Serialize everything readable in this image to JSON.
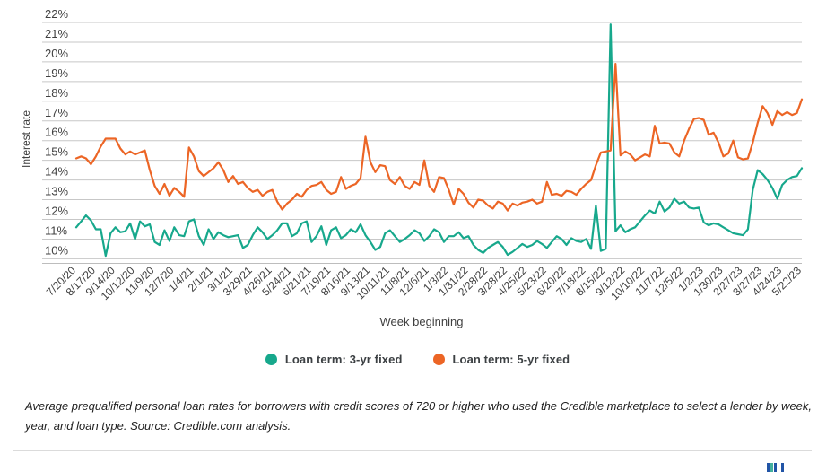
{
  "legend": {
    "series1_label": "Loan term: 3-yr fixed",
    "series2_label": "Loan term: 5-yr fixed"
  },
  "footnote": "Average prequalified personal loan rates for borrowers with credit scores of 720 or higher who used the Credible marketplace to select a lender by week, year, and loan type. Source: Credible.com analysis.",
  "colors": {
    "series_3yr": "#17A88C",
    "series_5yr": "#EC6525",
    "gridline": "#c7c7c7",
    "baseline": "#bdbdbd",
    "tick_text": "#404040",
    "logo_blue": "#2154a6",
    "logo_teal": "#44b09e"
  },
  "chart_data": {
    "type": "line",
    "title": "",
    "xlabel": "Week beginning",
    "ylabel": "Interest rate",
    "ylim": [
      10,
      22
    ],
    "grid": "horizontal",
    "legend_position": "bottom",
    "y_ticks": [
      "22%",
      "21%",
      "20%",
      "19%",
      "18%",
      "17%",
      "16%",
      "15%",
      "14%",
      "13%",
      "12%",
      "11%",
      "10%"
    ],
    "weeks_per_tick": 4,
    "x_tick_labels": [
      "7/20/20",
      "8/17/20",
      "9/14/20",
      "10/12/20",
      "11/9/20",
      "12/7/20",
      "1/4/21",
      "2/1/21",
      "3/1/21",
      "3/29/21",
      "4/26/21",
      "5/24/21",
      "6/21/21",
      "7/19/21",
      "8/16/21",
      "9/13/21",
      "10/11/21",
      "11/8/21",
      "12/6/21",
      "1/3/22",
      "1/31/22",
      "2/28/22",
      "3/28/22",
      "4/25/22",
      "5/23/22",
      "6/20/22",
      "7/18/22",
      "8/15/22",
      "9/12/22",
      "10/10/22",
      "11/7/22",
      "12/5/22",
      "1/2/23",
      "1/30/23",
      "2/27/23",
      "3/27/23",
      "4/24/23",
      "5/22/23"
    ],
    "series": [
      {
        "name": "Loan term: 3-yr fixed",
        "color": "#17A88C",
        "values": [
          11.6,
          11.9,
          12.2,
          11.95,
          11.5,
          11.5,
          10.15,
          11.3,
          11.6,
          11.35,
          11.4,
          11.8,
          11.0,
          11.9,
          11.65,
          11.75,
          10.85,
          10.7,
          11.45,
          10.9,
          11.6,
          11.2,
          11.15,
          11.9,
          12.0,
          11.15,
          10.7,
          11.5,
          11.0,
          11.35,
          11.2,
          11.1,
          11.15,
          11.2,
          10.55,
          10.7,
          11.2,
          11.6,
          11.35,
          11.0,
          11.2,
          11.45,
          11.8,
          11.8,
          11.15,
          11.3,
          11.8,
          11.9,
          10.85,
          11.15,
          11.65,
          10.7,
          11.45,
          11.6,
          11.05,
          11.2,
          11.5,
          11.35,
          11.75,
          11.2,
          10.85,
          10.45,
          10.6,
          11.3,
          11.45,
          11.15,
          10.85,
          11.0,
          11.2,
          11.45,
          11.3,
          10.9,
          11.15,
          11.5,
          11.35,
          10.85,
          11.15,
          11.15,
          11.35,
          11.05,
          11.15,
          10.7,
          10.45,
          10.3,
          10.55,
          10.7,
          10.85,
          10.6,
          10.2,
          10.35,
          10.55,
          10.75,
          10.6,
          10.7,
          10.9,
          10.75,
          10.55,
          10.85,
          11.15,
          11.0,
          10.7,
          11.05,
          10.9,
          10.85,
          11.0,
          10.5,
          12.7,
          10.4,
          10.5,
          21.9,
          11.4,
          11.7,
          11.35,
          11.5,
          11.6,
          11.9,
          12.2,
          12.45,
          12.3,
          12.9,
          12.4,
          12.6,
          13.05,
          12.8,
          12.9,
          12.6,
          12.55,
          12.6,
          11.85,
          11.7,
          11.8,
          11.75,
          11.6,
          11.45,
          11.3,
          11.25,
          11.2,
          11.5,
          13.5,
          14.5,
          14.3,
          14.0,
          13.6,
          13.05,
          13.75,
          14.0,
          14.15,
          14.2,
          14.6
        ]
      },
      {
        "name": "Loan term: 5-yr fixed",
        "color": "#EC6525",
        "values": [
          15.1,
          15.2,
          15.1,
          14.8,
          15.2,
          15.7,
          16.1,
          16.1,
          16.1,
          15.6,
          15.3,
          15.45,
          15.3,
          15.4,
          15.5,
          14.5,
          13.7,
          13.3,
          13.8,
          13.2,
          13.6,
          13.4,
          13.15,
          15.65,
          15.2,
          14.45,
          14.2,
          14.4,
          14.6,
          14.9,
          14.5,
          13.9,
          14.2,
          13.8,
          13.9,
          13.6,
          13.4,
          13.5,
          13.2,
          13.4,
          13.5,
          12.9,
          12.5,
          12.8,
          13.0,
          13.3,
          13.15,
          13.5,
          13.7,
          13.75,
          13.9,
          13.5,
          13.3,
          13.4,
          14.15,
          13.55,
          13.7,
          13.8,
          14.1,
          16.2,
          14.9,
          14.4,
          14.75,
          14.7,
          14.0,
          13.8,
          14.15,
          13.7,
          13.55,
          13.9,
          13.75,
          15.0,
          13.7,
          13.4,
          14.15,
          14.1,
          13.5,
          12.75,
          13.55,
          13.3,
          12.85,
          12.6,
          13.0,
          12.95,
          12.7,
          12.55,
          12.9,
          12.8,
          12.45,
          12.8,
          12.7,
          12.85,
          12.9,
          13.0,
          12.8,
          12.9,
          13.9,
          13.25,
          13.3,
          13.2,
          13.45,
          13.4,
          13.25,
          13.55,
          13.8,
          14.0,
          14.75,
          15.4,
          15.45,
          15.5,
          19.9,
          15.25,
          15.45,
          15.3,
          15.0,
          15.15,
          15.3,
          15.2,
          16.75,
          15.85,
          15.9,
          15.85,
          15.4,
          15.2,
          16.0,
          16.6,
          17.1,
          17.15,
          17.05,
          16.3,
          16.4,
          15.9,
          15.2,
          15.35,
          16.0,
          15.15,
          15.05,
          15.1,
          15.9,
          16.9,
          17.75,
          17.4,
          16.8,
          17.5,
          17.3,
          17.45,
          17.3,
          17.4,
          18.1
        ]
      }
    ]
  }
}
